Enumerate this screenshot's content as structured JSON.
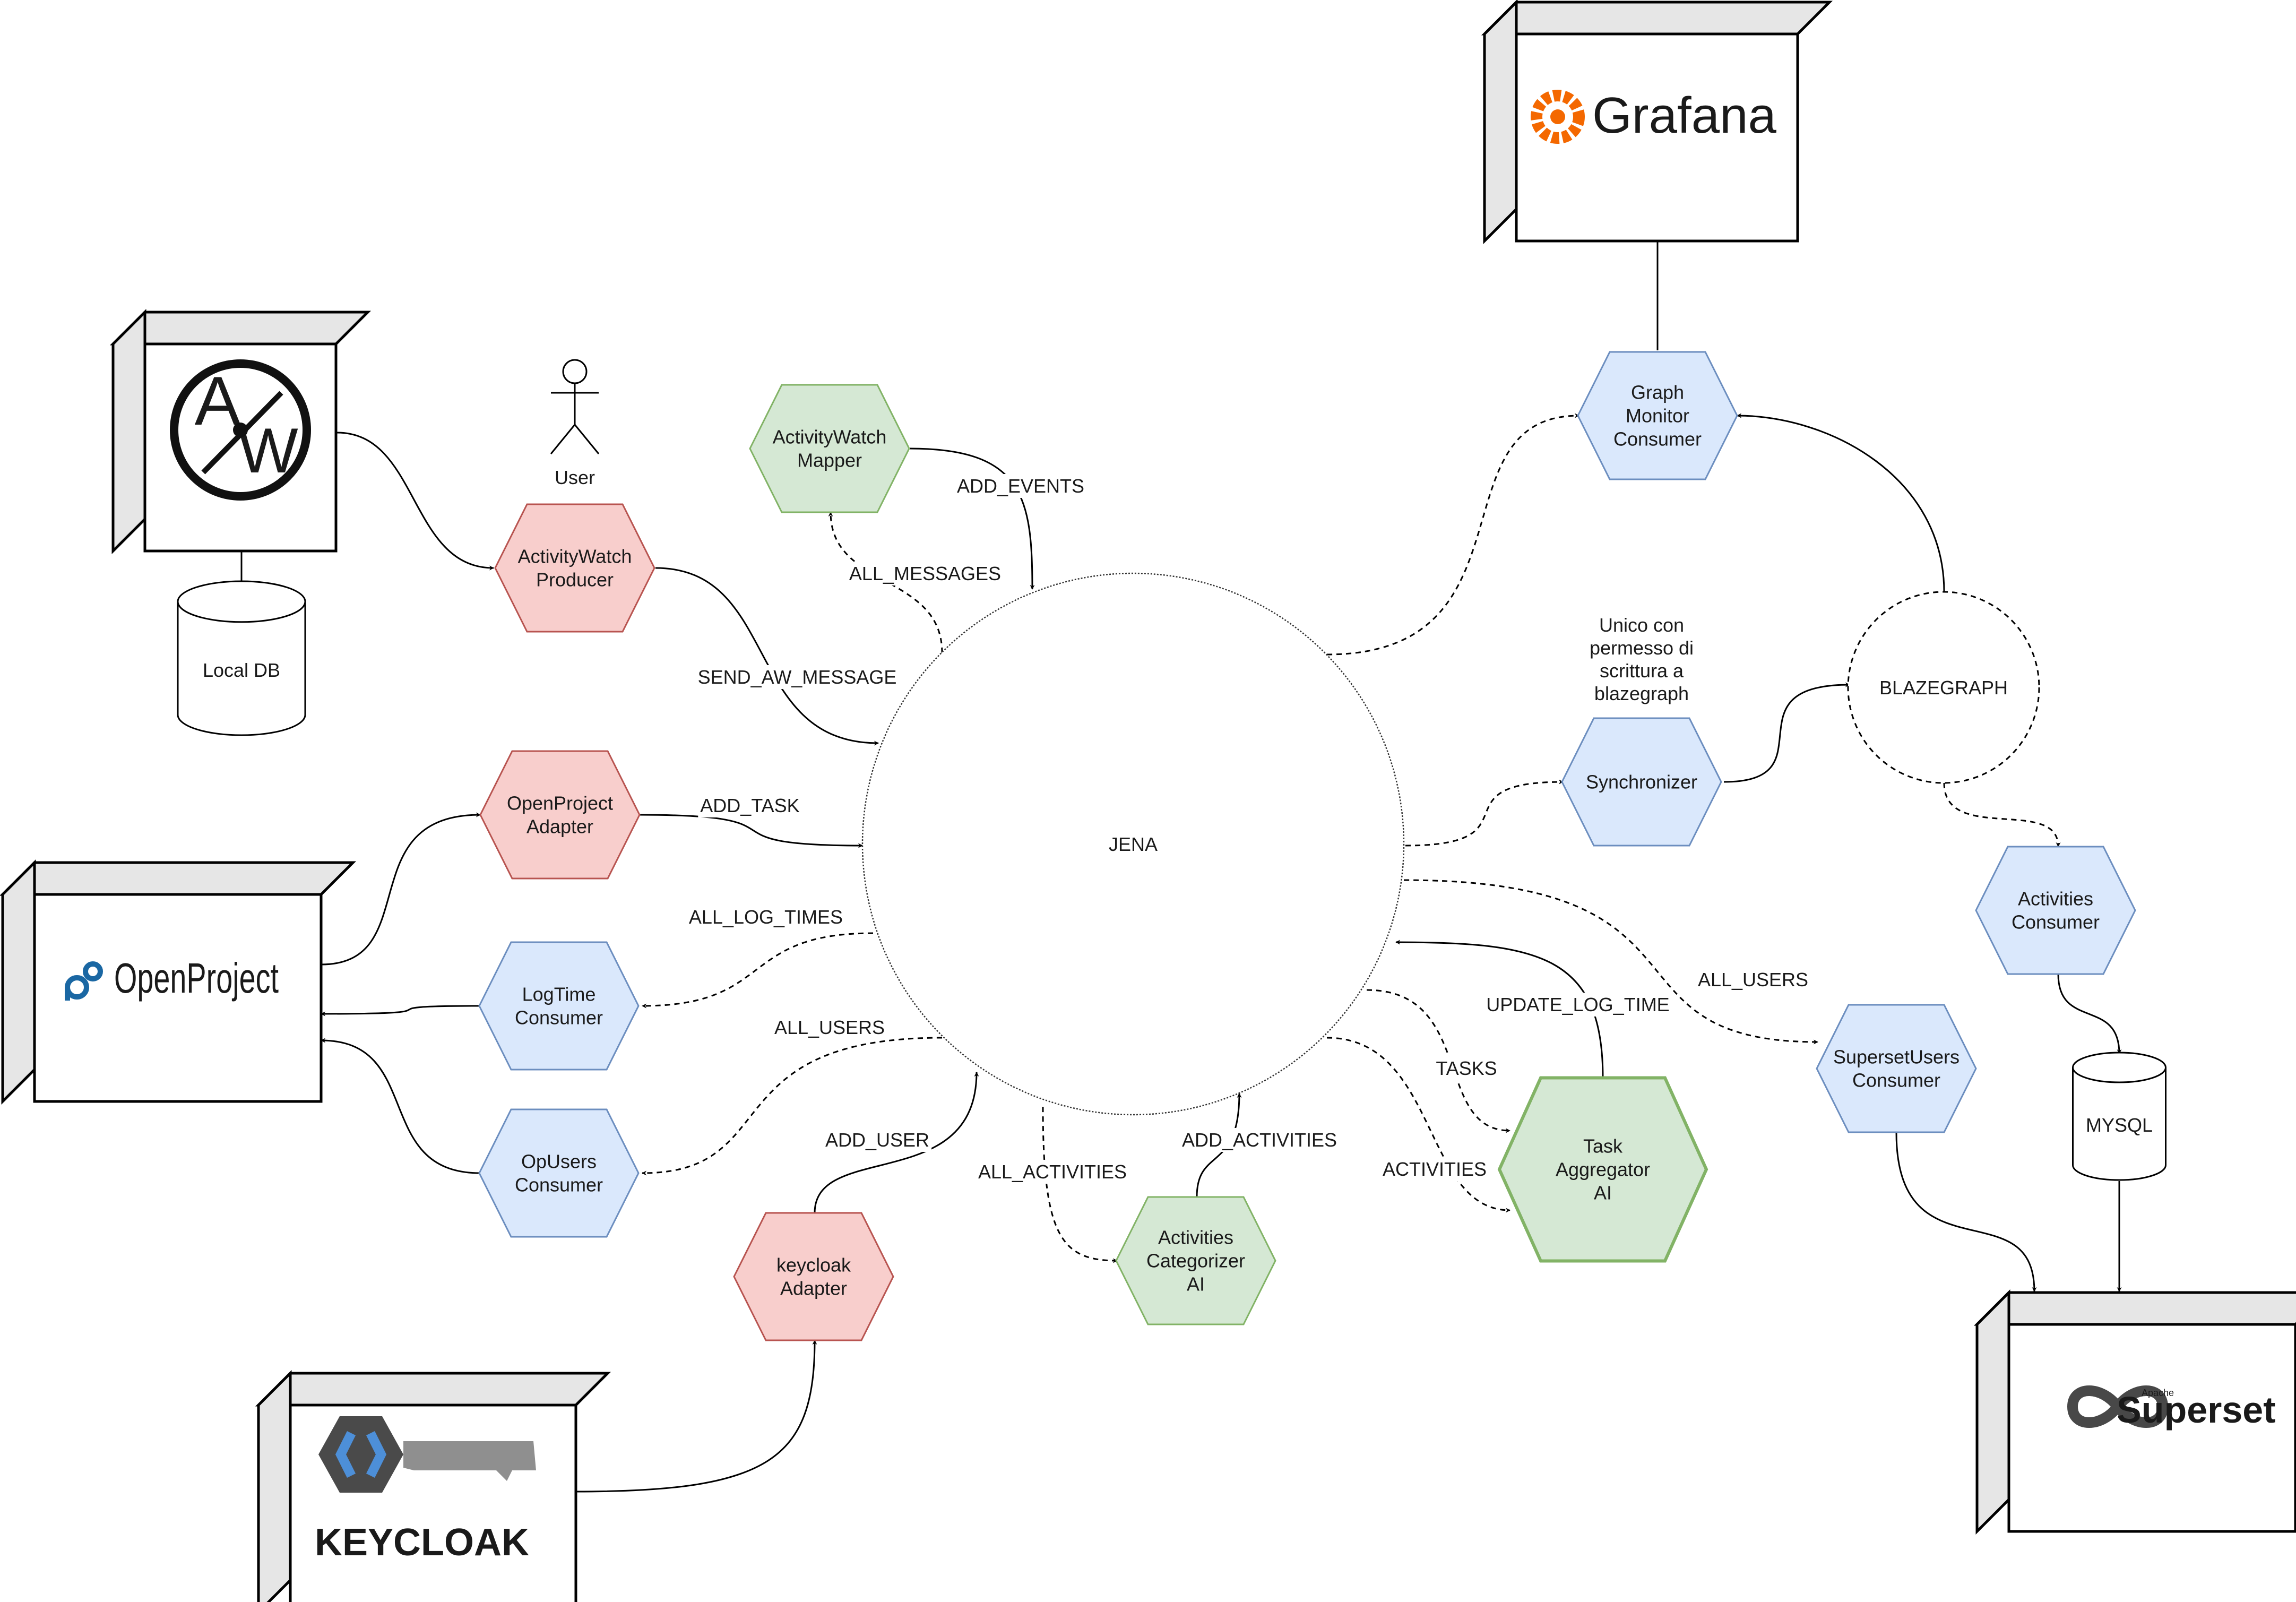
{
  "center": {
    "label": "JENA"
  },
  "store": {
    "label": "BLAZEGRAPH"
  },
  "note": {
    "lines": [
      "Unico con",
      "permesso di",
      "scrittura a",
      "blazegraph"
    ]
  },
  "actor": {
    "label": "User"
  },
  "databases": {
    "local_db": "Local DB",
    "mysql": "MYSQL"
  },
  "systems": {
    "grafana": "Grafana",
    "openproject": "OpenProject",
    "keycloak": "KEYCLOAK",
    "superset": "Superset",
    "superset_small": "Apache",
    "activitywatch_a": "A",
    "activitywatch_w": "W"
  },
  "nodes": {
    "aw_producer": [
      "ActivityWatch",
      "Producer"
    ],
    "aw_mapper": [
      "ActivityWatch",
      "Mapper"
    ],
    "op_adapter": [
      "OpenProject",
      "Adapter"
    ],
    "logtime": [
      "LogTime",
      "Consumer"
    ],
    "opusers": [
      "OpUsers",
      "Consumer"
    ],
    "keycloak_adapter": [
      "keycloak",
      "Adapter"
    ],
    "activities_categorizer": [
      "Activities",
      "Categorizer",
      "AI"
    ],
    "task_aggregator": [
      "Task",
      "Aggregator",
      "AI"
    ],
    "graph_monitor": [
      "Graph",
      "Monitor",
      "Consumer"
    ],
    "synchronizer": [
      "Synchronizer"
    ],
    "activities_consumer": [
      "Activities",
      "Consumer"
    ],
    "superset_users": [
      "SupersetUsers",
      "Consumer"
    ]
  },
  "edges": {
    "send_aw_message": "SEND_AW_MESSAGE",
    "all_messages": "ALL_MESSAGES",
    "add_events": "ADD_EVENTS",
    "add_task": "ADD_TASK",
    "all_log_times": "ALL_LOG_TIMES",
    "all_users_left": "ALL_USERS",
    "add_user": "ADD_USER",
    "all_activities": "ALL_ACTIVITIES",
    "add_activities": "ADD_ACTIVITIES",
    "activities": "ACTIVITIES",
    "tasks": "TASKS",
    "update_log_time": "UPDATE_LOG_TIME",
    "all_users_right": "ALL_USERS"
  },
  "colors": {
    "red_fill": "#f8cecc",
    "red_stroke": "#b85450",
    "green_fill": "#d5e8d4",
    "green_stroke": "#82b366",
    "blue_fill": "#dae8fc",
    "blue_stroke": "#6c8ebf",
    "grafana_orange": "#f46800",
    "openproject_blue": "#1a67a3",
    "keycloak_blue": "#4d8fd8",
    "superset_dark": "#484848"
  }
}
